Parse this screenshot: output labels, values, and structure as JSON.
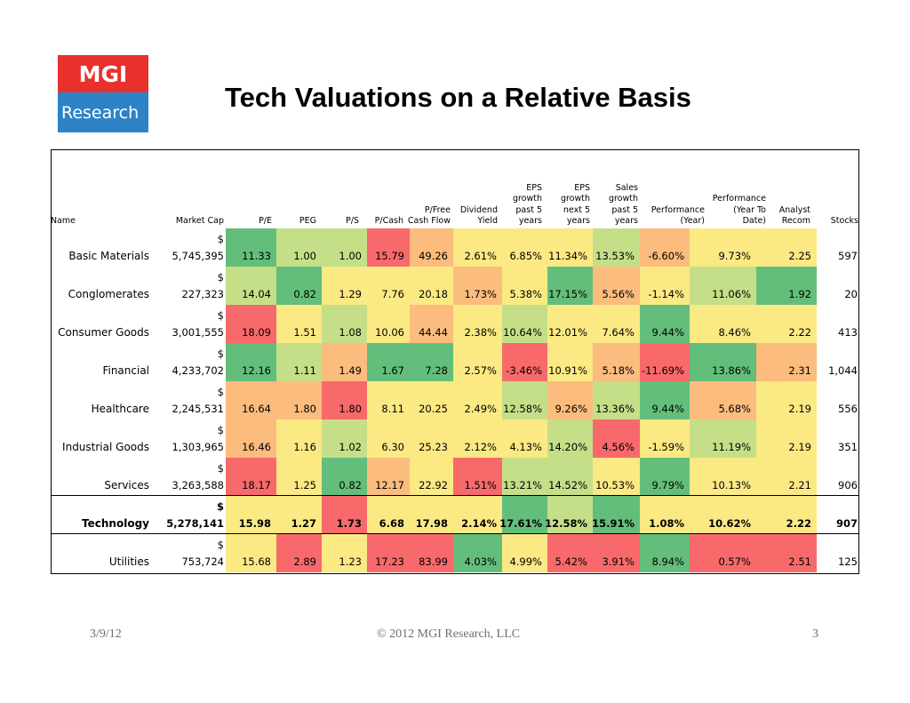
{
  "logo": {
    "line1": "MGI",
    "line2": "Research"
  },
  "title": "Tech Valuations on a Relative Basis",
  "colors": {
    "green": "#63be7b",
    "lightgreen": "#c4df88",
    "yellow": "#fbe984",
    "orange": "#fbbc7e",
    "red": "#f8696b"
  },
  "table": {
    "headers": [
      [
        "Name"
      ],
      [
        "Market Cap"
      ],
      [
        "P/E"
      ],
      [
        "PEG"
      ],
      [
        "P/S"
      ],
      [
        "P/Cash"
      ],
      [
        "P/Free",
        "Cash Flow"
      ],
      [
        "Dividend",
        "Yield"
      ],
      [
        "EPS",
        "growth",
        "past 5",
        "years"
      ],
      [
        "EPS",
        "growth",
        "next 5",
        "years"
      ],
      [
        "Sales",
        "growth",
        "past 5",
        "years"
      ],
      [
        "Performance",
        "(Year)"
      ],
      [
        "Performance",
        "(Year To",
        "Date)"
      ],
      [
        "Analyst",
        "Recom"
      ],
      [
        "Stocks"
      ]
    ],
    "rows": [
      {
        "name": "Basic Materials",
        "dollar": "$",
        "mcap": "5,745,395",
        "vals": [
          "11.33",
          "1.00",
          "1.00",
          "15.79",
          "49.26",
          "2.61%",
          "6.85%",
          "11.34%",
          "13.53%",
          "-6.60%",
          "9.73%",
          "2.25",
          "597"
        ],
        "colors": [
          "green",
          "lightgreen",
          "lightgreen",
          "red",
          "orange",
          "yellow",
          "yellow",
          "yellow",
          "lightgreen",
          "orange",
          "yellow",
          "yellow",
          "none"
        ]
      },
      {
        "name": "Conglomerates",
        "dollar": "$",
        "mcap": "227,323",
        "vals": [
          "14.04",
          "0.82",
          "1.29",
          "7.76",
          "20.18",
          "1.73%",
          "5.38%",
          "17.15%",
          "5.56%",
          "-1.14%",
          "11.06%",
          "1.92",
          "20"
        ],
        "colors": [
          "lightgreen",
          "green",
          "yellow",
          "yellow",
          "yellow",
          "orange",
          "yellow",
          "green",
          "orange",
          "yellow",
          "lightgreen",
          "green",
          "none"
        ]
      },
      {
        "name": "Consumer Goods",
        "dollar": "$",
        "mcap": "3,001,555",
        "vals": [
          "18.09",
          "1.51",
          "1.08",
          "10.06",
          "44.44",
          "2.38%",
          "10.64%",
          "12.01%",
          "7.64%",
          "9.44%",
          "8.46%",
          "2.22",
          "413"
        ],
        "colors": [
          "red",
          "yellow",
          "lightgreen",
          "yellow",
          "orange",
          "yellow",
          "lightgreen",
          "yellow",
          "yellow",
          "green",
          "yellow",
          "yellow",
          "none"
        ]
      },
      {
        "name": "Financial",
        "dollar": "$",
        "mcap": "4,233,702",
        "vals": [
          "12.16",
          "1.11",
          "1.49",
          "1.67",
          "7.28",
          "2.57%",
          "-3.46%",
          "10.91%",
          "5.18%",
          "-11.69%",
          "13.86%",
          "2.31",
          "1,044"
        ],
        "colors": [
          "green",
          "lightgreen",
          "orange",
          "green",
          "green",
          "yellow",
          "red",
          "yellow",
          "orange",
          "red",
          "green",
          "orange",
          "none"
        ]
      },
      {
        "name": "Healthcare",
        "dollar": "$",
        "mcap": "2,245,531",
        "vals": [
          "16.64",
          "1.80",
          "1.80",
          "8.11",
          "20.25",
          "2.49%",
          "12.58%",
          "9.26%",
          "13.36%",
          "9.44%",
          "5.68%",
          "2.19",
          "556"
        ],
        "colors": [
          "orange",
          "orange",
          "red",
          "yellow",
          "yellow",
          "yellow",
          "lightgreen",
          "orange",
          "lightgreen",
          "green",
          "orange",
          "yellow",
          "none"
        ]
      },
      {
        "name": "Industrial Goods",
        "dollar": "$",
        "mcap": "1,303,965",
        "vals": [
          "16.46",
          "1.16",
          "1.02",
          "6.30",
          "25.23",
          "2.12%",
          "4.13%",
          "14.20%",
          "4.56%",
          "-1.59%",
          "11.19%",
          "2.19",
          "351"
        ],
        "colors": [
          "orange",
          "yellow",
          "lightgreen",
          "yellow",
          "yellow",
          "yellow",
          "yellow",
          "lightgreen",
          "red",
          "yellow",
          "lightgreen",
          "yellow",
          "none"
        ]
      },
      {
        "name": "Services",
        "dollar": "$",
        "mcap": "3,263,588",
        "vals": [
          "18.17",
          "1.25",
          "0.82",
          "12.17",
          "22.92",
          "1.51%",
          "13.21%",
          "14.52%",
          "10.53%",
          "9.79%",
          "10.13%",
          "2.21",
          "906"
        ],
        "colors": [
          "red",
          "yellow",
          "green",
          "orange",
          "yellow",
          "red",
          "lightgreen",
          "lightgreen",
          "yellow",
          "green",
          "yellow",
          "yellow",
          "none"
        ]
      },
      {
        "name": "Technology",
        "dollar": "$",
        "mcap": "5,278,141",
        "bold": true,
        "vals": [
          "15.98",
          "1.27",
          "1.73",
          "6.68",
          "17.98",
          "2.14%",
          "17.61%",
          "12.58%",
          "15.91%",
          "1.08%",
          "10.62%",
          "2.22",
          "907"
        ],
        "colors": [
          "yellow",
          "yellow",
          "red",
          "yellow",
          "yellow",
          "yellow",
          "green",
          "lightgreen",
          "green",
          "yellow",
          "yellow",
          "yellow",
          "none"
        ]
      },
      {
        "name": "Utilities",
        "dollar": "$",
        "mcap": "753,724",
        "vals": [
          "15.68",
          "2.89",
          "1.23",
          "17.23",
          "83.99",
          "4.03%",
          "4.99%",
          "5.42%",
          "3.91%",
          "8.94%",
          "0.57%",
          "2.51",
          "125"
        ],
        "colors": [
          "yellow",
          "red",
          "yellow",
          "red",
          "red",
          "green",
          "yellow",
          "red",
          "red",
          "green",
          "red",
          "red",
          "none"
        ]
      }
    ]
  },
  "footer": {
    "date": "3/9/12",
    "copyright": "© 2012 MGI Research, LLC",
    "page": "3"
  }
}
